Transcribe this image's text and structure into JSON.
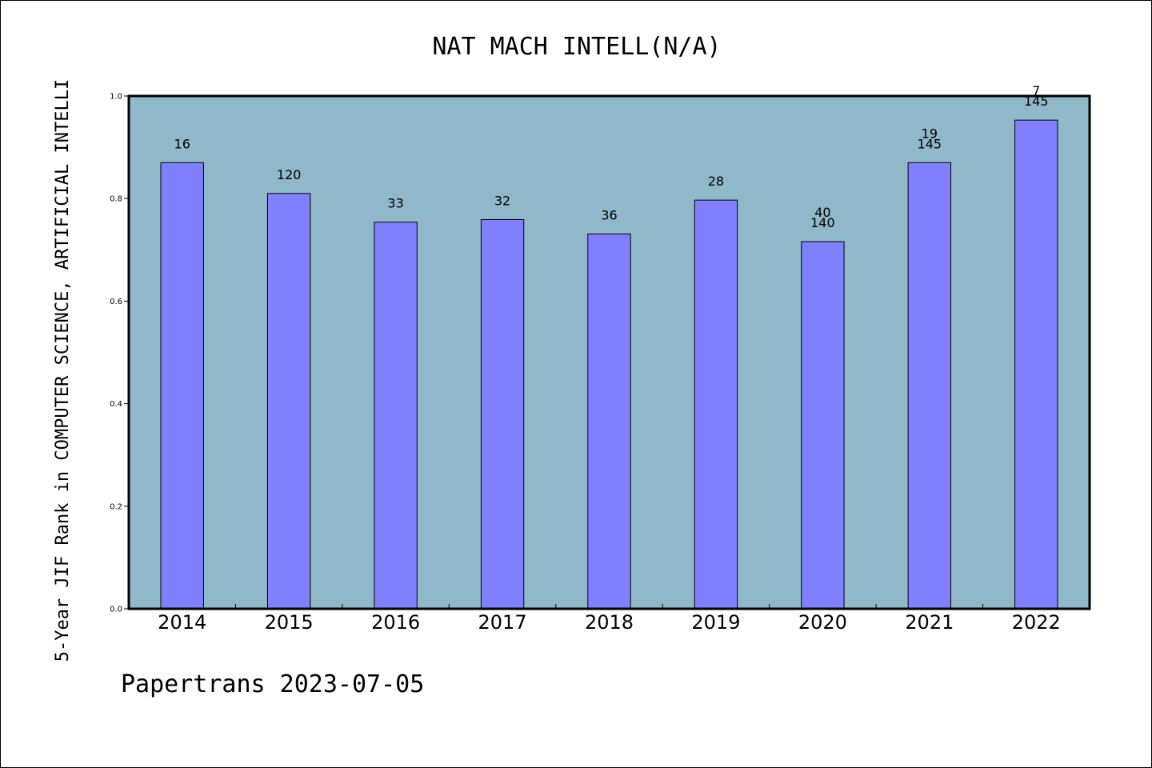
{
  "colors": {
    "plot_background": "#8fb8c8",
    "bar_fill": "#8080ff",
    "bar_stroke": "#000000",
    "frame": "#000000"
  },
  "footer_text": "Papertrans 2023-07-05",
  "chart_data": {
    "type": "bar",
    "title": "NAT MACH INTELL(N/A)",
    "ylabel": "5-Year JIF Rank in COMPUTER SCIENCE, ARTIFICIAL INTELLI",
    "xlabel": "",
    "ylim": [
      0.0,
      1.0
    ],
    "yticks": [
      "0.0",
      "0.2",
      "0.4",
      "0.6",
      "0.8",
      "1.0"
    ],
    "grid": false,
    "legend": "none",
    "categories": [
      "2014",
      "2015",
      "2016",
      "2017",
      "2018",
      "2019",
      "2020",
      "2021",
      "2022"
    ],
    "values": [
      0.87,
      0.81,
      0.754,
      0.759,
      0.731,
      0.797,
      0.716,
      0.87,
      0.953
    ],
    "data_labels": [
      [
        "16"
      ],
      [
        "120"
      ],
      [
        "33"
      ],
      [
        "32"
      ],
      [
        "36"
      ],
      [
        "28"
      ],
      [
        "40",
        "140"
      ],
      [
        "19",
        "145"
      ],
      [
        "7",
        "145"
      ]
    ]
  }
}
